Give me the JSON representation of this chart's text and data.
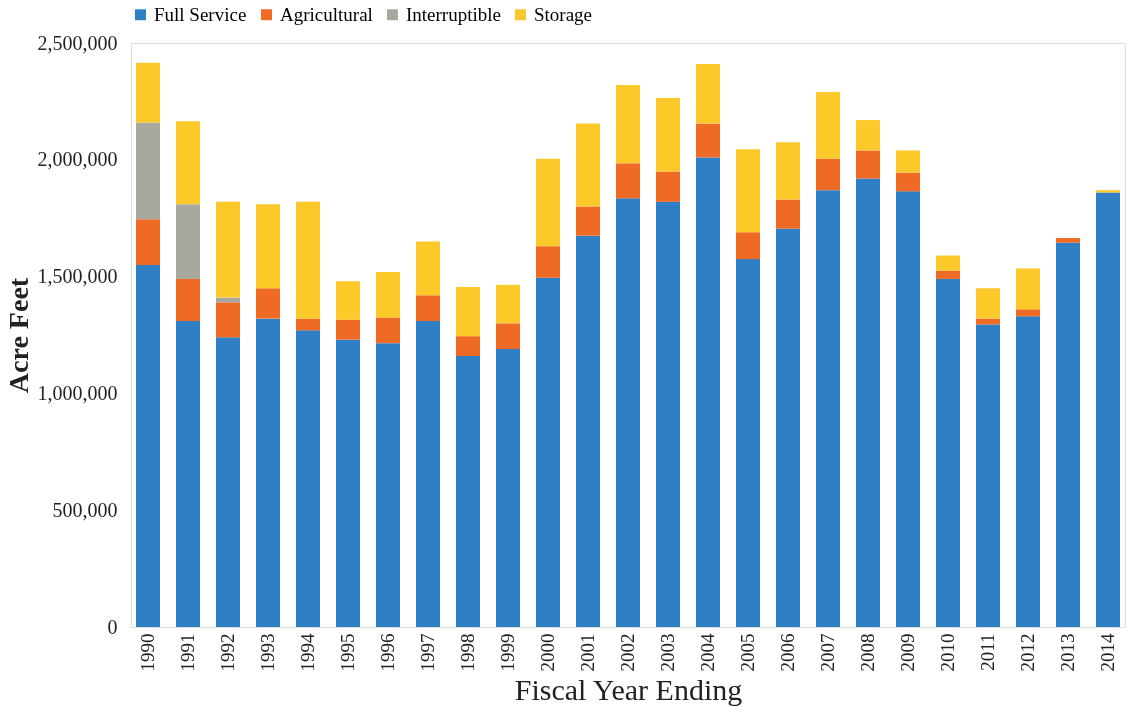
{
  "chart_data": {
    "type": "bar",
    "stacked": true,
    "xlabel": "Fiscal Year Ending",
    "ylabel": "Acre Feet",
    "categories": [
      "1990",
      "1991",
      "1992",
      "1993",
      "1994",
      "1995",
      "1996",
      "1997",
      "1998",
      "1999",
      "2000",
      "2001",
      "2002",
      "2003",
      "2004",
      "2005",
      "2006",
      "2007",
      "2008",
      "2009",
      "2010",
      "2011",
      "2012",
      "2013",
      "2014"
    ],
    "series": [
      {
        "name": "Full Service",
        "color": "#2e7fc6",
        "values": [
          1550000,
          1310000,
          1240000,
          1320000,
          1270000,
          1230000,
          1215000,
          1310000,
          1160000,
          1190000,
          1495000,
          1675000,
          1835000,
          1820000,
          2010000,
          1575000,
          1705000,
          1870000,
          1920000,
          1865000,
          1490000,
          1295000,
          1330000,
          1645000,
          1860000
        ]
      },
      {
        "name": "Agricultural",
        "color": "#ee6a25",
        "values": [
          195000,
          180000,
          150000,
          130000,
          50000,
          85000,
          110000,
          110000,
          85000,
          110000,
          135000,
          125000,
          150000,
          130000,
          145000,
          115000,
          125000,
          135000,
          120000,
          80000,
          35000,
          25000,
          30000,
          20000,
          0
        ]
      },
      {
        "name": "Interruptible",
        "color": "#a9a89f",
        "values": [
          415000,
          320000,
          20000,
          0,
          0,
          0,
          0,
          0,
          0,
          0,
          0,
          0,
          0,
          0,
          0,
          0,
          0,
          0,
          0,
          0,
          0,
          0,
          0,
          0,
          0
        ]
      },
      {
        "name": "Storage",
        "color": "#fdc82a",
        "values": [
          255000,
          355000,
          410000,
          360000,
          500000,
          165000,
          195000,
          230000,
          210000,
          165000,
          375000,
          355000,
          335000,
          315000,
          255000,
          355000,
          245000,
          285000,
          130000,
          95000,
          65000,
          130000,
          175000,
          0,
          10000
        ]
      }
    ],
    "ylim": [
      0,
      2500000
    ],
    "yticks": [
      0,
      {
        "value": 500000,
        "label": "500,000"
      },
      {
        "value": 1000000,
        "label": "1,000,000"
      },
      {
        "value": 1500000,
        "label": "1,500,000"
      },
      {
        "value": 2000000,
        "label": "2,000,000"
      },
      {
        "value": 2500000,
        "label": "2,500,000"
      }
    ],
    "grid": false,
    "legend": "top"
  }
}
